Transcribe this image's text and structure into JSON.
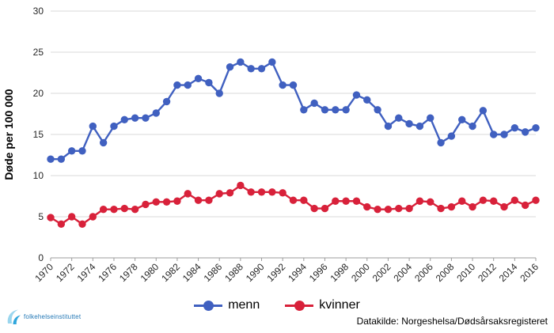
{
  "chart_data": {
    "type": "line",
    "title": "",
    "ylabel": "Døde per 100 000",
    "xlabel": "",
    "ylim": [
      0,
      30
    ],
    "ytick_step": 5,
    "xtick_step": 2,
    "grid": true,
    "legend_position": "bottom",
    "grid_color": "#d9d9d9",
    "axis_color": "#9c9c9c",
    "text_color": "#262626",
    "x": [
      1970,
      1971,
      1972,
      1973,
      1974,
      1975,
      1976,
      1977,
      1978,
      1979,
      1980,
      1981,
      1982,
      1983,
      1984,
      1985,
      1986,
      1987,
      1988,
      1989,
      1990,
      1991,
      1992,
      1993,
      1994,
      1995,
      1996,
      1997,
      1998,
      1999,
      2000,
      2001,
      2002,
      2003,
      2004,
      2005,
      2006,
      2007,
      2008,
      2009,
      2010,
      2011,
      2012,
      2013,
      2014,
      2015,
      2016
    ],
    "series": [
      {
        "name": "menn",
        "color": "#4060c0",
        "values": [
          12,
          12,
          13,
          13,
          16,
          14,
          16,
          16.8,
          17,
          17,
          17.6,
          19,
          21,
          21,
          21.8,
          21.3,
          20,
          23.2,
          23.8,
          23,
          23,
          23.8,
          21,
          21,
          18,
          18.8,
          18,
          18,
          18,
          19.8,
          19.2,
          18,
          16,
          17,
          16.3,
          16,
          17,
          14,
          14.8,
          16.8,
          16,
          17.9,
          15,
          15,
          15.8,
          15.3,
          15.8
        ]
      },
      {
        "name": "kvinner",
        "color": "#d8213a",
        "values": [
          4.9,
          4.1,
          5,
          4.1,
          5,
          5.9,
          5.9,
          6,
          5.9,
          6.5,
          6.8,
          6.8,
          6.9,
          7.8,
          7,
          7,
          7.8,
          7.9,
          8.8,
          8,
          8,
          8,
          7.9,
          7,
          7,
          6,
          6,
          6.9,
          6.9,
          6.9,
          6.2,
          5.9,
          5.9,
          6,
          6,
          6.9,
          6.8,
          6,
          6.2,
          6.9,
          6.2,
          7,
          6.9,
          6.2,
          7,
          6.4,
          7
        ]
      }
    ]
  },
  "footer": {
    "source": "Datakilde: Norgeshelsa/Dødsårsaksregisteret",
    "logo_text": "folkehelseinstituttet"
  }
}
